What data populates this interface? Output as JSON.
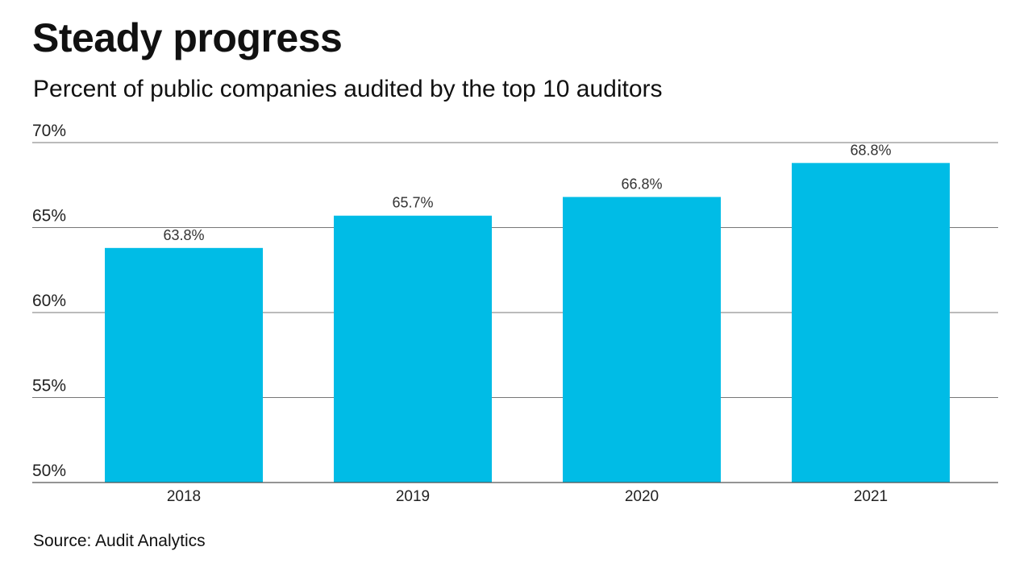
{
  "chart_data": {
    "type": "bar",
    "title": "Steady progress",
    "subtitle": "Percent of public companies audited by the top 10 auditors",
    "source": "Source: Audit Analytics",
    "categories": [
      "2018",
      "2019",
      "2020",
      "2021"
    ],
    "values": [
      63.8,
      65.7,
      66.8,
      68.8
    ],
    "data_labels": [
      "63.8%",
      "65.7%",
      "66.8%",
      "68.8%"
    ],
    "ylim": [
      50,
      70
    ],
    "yticks": [
      50,
      55,
      60,
      65,
      70
    ],
    "ytick_labels": [
      "50%",
      "55%",
      "60%",
      "65%",
      "70%"
    ],
    "grid": true,
    "bar_color": "#00bce6"
  }
}
